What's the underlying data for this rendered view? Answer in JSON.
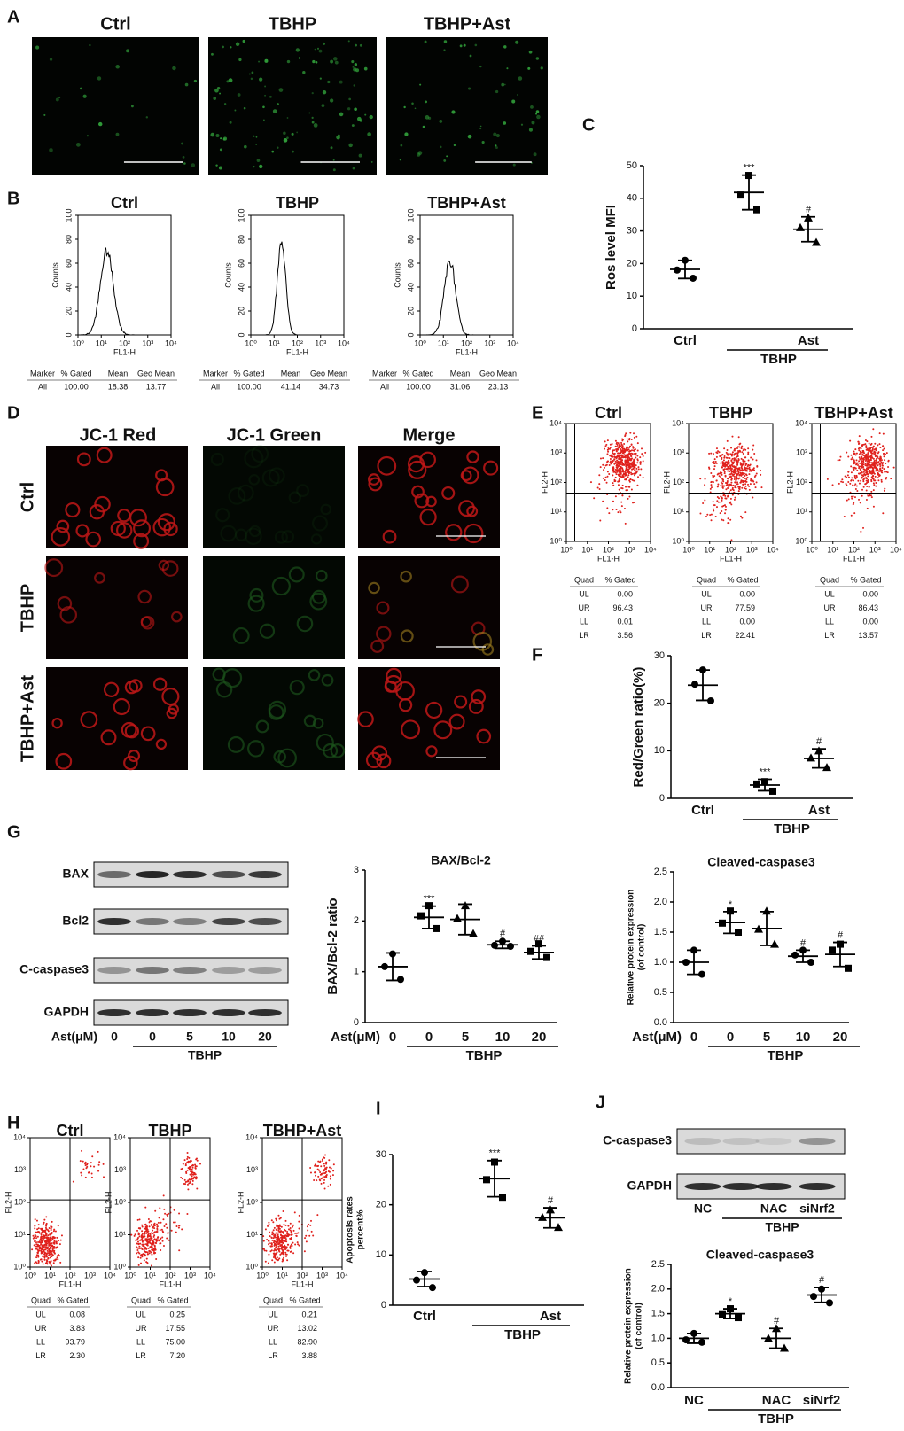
{
  "panel_letters": [
    "A",
    "B",
    "C",
    "D",
    "E",
    "F",
    "G",
    "H",
    "I",
    "J"
  ],
  "A": {
    "titles": [
      "Ctrl",
      "TBHP",
      "TBHP+Ast"
    ]
  },
  "B": {
    "titles": [
      "Ctrl",
      "TBHP",
      "TBHP+Ast"
    ],
    "ylabel": "Counts",
    "xlabel": "FL1-H",
    "ylim": [
      0,
      100
    ],
    "yticks": [
      0,
      20,
      40,
      60,
      80,
      100
    ],
    "xscale": "log",
    "xlim": [
      1,
      10000
    ],
    "xticks": [
      {
        "value": 1,
        "label": "10⁰"
      },
      {
        "value": 10,
        "label": "10¹"
      },
      {
        "value": 100,
        "label": "10²"
      },
      {
        "value": 1000,
        "label": "10³"
      },
      {
        "value": 10000,
        "label": "10⁴"
      }
    ],
    "table_header": [
      "Marker",
      "% Gated",
      "Mean",
      "Geo Mean"
    ],
    "table_rows": [
      [
        "All",
        "100.00",
        "18.38",
        "13.77"
      ],
      [
        "All",
        "100.00",
        "41.14",
        "34.73"
      ],
      [
        "All",
        "100.00",
        "31.06",
        "23.13"
      ]
    ]
  },
  "D": {
    "columns": [
      "JC-1 Red",
      "JC-1 Green",
      "Merge"
    ],
    "rows": [
      "Ctrl",
      "TBHP",
      "TBHP+Ast"
    ]
  },
  "E": {
    "titles": [
      "Ctrl",
      "TBHP",
      "TBHP+Ast"
    ],
    "ylabel": "FL2-H",
    "xlabel": "FL1-H",
    "scale": "log",
    "lim": [
      1,
      10000
    ],
    "ticks": [
      {
        "value": 1,
        "label": "10⁰"
      },
      {
        "value": 10,
        "label": "10¹"
      },
      {
        "value": 100,
        "label": "10²"
      },
      {
        "value": 1000,
        "label": "10³"
      },
      {
        "value": 10000,
        "label": "10⁴"
      }
    ],
    "table_header": [
      "Quad",
      "% Gated"
    ],
    "quads": [
      "UL",
      "UR",
      "LL",
      "LR"
    ],
    "tables": [
      [
        "0.00",
        "96.43",
        "0.01",
        "3.56"
      ],
      [
        "0.00",
        "77.59",
        "0.00",
        "22.41"
      ],
      [
        "0.00",
        "86.43",
        "0.00",
        "13.57"
      ]
    ]
  },
  "G_blot": {
    "proteins": [
      "BAX",
      "Bcl2",
      "C-caspase3",
      "GAPDH"
    ],
    "xlabel": "Ast(μM)",
    "lanes": [
      "0",
      "0",
      "5",
      "10",
      "20"
    ],
    "group_label": "TBHP"
  },
  "H": {
    "titles": [
      "Ctrl",
      "TBHP",
      "TBHP+Ast"
    ],
    "ylabel": "FL2-H",
    "xlabel": "FL1-H",
    "scale": "log",
    "lim": [
      1,
      10000
    ],
    "ticks": [
      {
        "value": 1,
        "label": "10⁰"
      },
      {
        "value": 10,
        "label": "10¹"
      },
      {
        "value": 100,
        "label": "10²"
      },
      {
        "value": 1000,
        "label": "10³"
      },
      {
        "value": 10000,
        "label": "10⁴"
      }
    ],
    "table_header": [
      "Quad",
      "% Gated"
    ],
    "quads": [
      "UL",
      "UR",
      "LL",
      "LR"
    ],
    "tables": [
      [
        "0.08",
        "3.83",
        "93.79",
        "2.30"
      ],
      [
        "0.25",
        "17.55",
        "75.00",
        "7.20"
      ],
      [
        "0.21",
        "13.02",
        "82.90",
        "3.88"
      ]
    ]
  },
  "J_blot": {
    "proteins": [
      "C-caspase3",
      "GAPDH"
    ],
    "lanes": [
      "NC",
      null,
      "NAC",
      "siNrf2"
    ],
    "group_label": "TBHP"
  },
  "chart_data": [
    {
      "type": "dotplot",
      "ylabel": [
        "Ros level MFI"
      ],
      "ylim": [
        0,
        50
      ],
      "yticks": [
        0,
        10,
        20,
        30,
        40,
        50
      ],
      "categories": [
        "Ctrl",
        null,
        "Ast"
      ],
      "group_label": "TBHP",
      "groups": [
        {
          "points": [
            21,
            18,
            15.5
          ],
          "mean": 18.2,
          "sd": 2.8
        },
        {
          "points": [
            47,
            41,
            36.5
          ],
          "mean": 41.8,
          "sd": 5.3
        },
        {
          "points": [
            34,
            31,
            26.5
          ],
          "mean": 30.5,
          "sd": 3.8
        }
      ],
      "annotations": [
        null,
        "***",
        "#"
      ]
    },
    {
      "type": "dotplot",
      "ylabel": [
        "Red/Green ratio(%)"
      ],
      "ylim": [
        0,
        30
      ],
      "yticks": [
        0,
        10,
        20,
        30
      ],
      "categories": [
        "Ctrl",
        null,
        "Ast"
      ],
      "group_label": "TBHP",
      "groups": [
        {
          "points": [
            27,
            24,
            20.5
          ],
          "mean": 23.8,
          "sd": 3.2
        },
        {
          "points": [
            3.5,
            3,
            1.5
          ],
          "mean": 2.8,
          "sd": 1.2
        },
        {
          "points": [
            10,
            8.5,
            6.5
          ],
          "mean": 8.4,
          "sd": 2
        }
      ],
      "annotations": [
        null,
        "***",
        "#"
      ]
    },
    {
      "type": "dotplot",
      "title": "BAX/Bcl-2",
      "ylabel": [
        "BAX/Bcl-2 ratio"
      ],
      "xlabel": "Ast(μM)",
      "ylim": [
        0,
        3
      ],
      "yticks": [
        0,
        1,
        2,
        3
      ],
      "categories": [
        "0",
        "0",
        "5",
        "10",
        "20"
      ],
      "group_label": "TBHP",
      "groups": [
        {
          "points": [
            1.35,
            1.1,
            0.85
          ],
          "mean": 1.1,
          "sd": 0.27
        },
        {
          "points": [
            2.3,
            2.1,
            1.85
          ],
          "mean": 2.07,
          "sd": 0.22
        },
        {
          "points": [
            2.3,
            2.05,
            1.75
          ],
          "mean": 2.03,
          "sd": 0.3
        },
        {
          "points": [
            1.6,
            1.52,
            1.5
          ],
          "mean": 1.53,
          "sd": 0.07
        },
        {
          "points": [
            1.55,
            1.4,
            1.28
          ],
          "mean": 1.38,
          "sd": 0.13
        }
      ],
      "annotations": [
        null,
        "***",
        null,
        "#",
        "##"
      ]
    },
    {
      "type": "dotplot",
      "title": "Cleaved-caspase3",
      "ylabel": [
        "Relative protein expression",
        "(of control)"
      ],
      "xlabel": "Ast(μM)",
      "ylim": [
        0,
        2.5
      ],
      "yticks": [
        {
          "value": 0,
          "label": "0.0"
        },
        {
          "value": 0.5,
          "label": "0.5"
        },
        {
          "value": 1,
          "label": "1.0"
        },
        {
          "value": 1.5,
          "label": "1.5"
        },
        {
          "value": 2,
          "label": "2.0"
        },
        {
          "value": 2.5,
          "label": "2.5"
        }
      ],
      "categories": [
        "0",
        "0",
        "5",
        "10",
        "20"
      ],
      "group_label": "TBHP",
      "groups": [
        {
          "points": [
            1.2,
            1.0,
            0.8
          ],
          "mean": 1.0,
          "sd": 0.2
        },
        {
          "points": [
            1.85,
            1.65,
            1.5
          ],
          "mean": 1.66,
          "sd": 0.18
        },
        {
          "points": [
            1.85,
            1.55,
            1.3
          ],
          "mean": 1.56,
          "sd": 0.28
        },
        {
          "points": [
            1.2,
            1.12,
            1.0
          ],
          "mean": 1.1,
          "sd": 0.1
        },
        {
          "points": [
            1.3,
            1.2,
            0.9
          ],
          "mean": 1.13,
          "sd": 0.2
        }
      ],
      "annotations": [
        null,
        "*",
        null,
        "#",
        "#"
      ]
    },
    {
      "type": "dotplot",
      "ylabel": [
        "Apoptosis rates",
        "percent%"
      ],
      "ylim": [
        0,
        30
      ],
      "yticks": [
        0,
        10,
        20,
        30
      ],
      "categories": [
        "Ctrl",
        null,
        "Ast"
      ],
      "group_label": "TBHP",
      "groups": [
        {
          "points": [
            6.5,
            5,
            3.5
          ],
          "mean": 5.2,
          "sd": 1.5
        },
        {
          "points": [
            28.5,
            25,
            21.5
          ],
          "mean": 25.2,
          "sd": 3.6
        },
        {
          "points": [
            19,
            17.5,
            15.5
          ],
          "mean": 17.4,
          "sd": 2
        }
      ],
      "annotations": [
        null,
        "***",
        "#"
      ]
    },
    {
      "type": "dotplot",
      "title": "Cleaved-caspase3",
      "ylabel": [
        "Relative protein expression",
        "(of control)"
      ],
      "ylim": [
        0,
        2.5
      ],
      "yticks": [
        {
          "value": 0,
          "label": "0.0"
        },
        {
          "value": 0.5,
          "label": "0.5"
        },
        {
          "value": 1,
          "label": "1.0"
        },
        {
          "value": 1.5,
          "label": "1.5"
        },
        {
          "value": 2,
          "label": "2.0"
        },
        {
          "value": 2.5,
          "label": "2.5"
        }
      ],
      "categories": [
        "NC",
        null,
        "NAC",
        "siNrf2"
      ],
      "group_label": "TBHP",
      "groups": [
        {
          "points": [
            1.1,
            0.97,
            0.92
          ],
          "mean": 1.0,
          "sd": 0.1
        },
        {
          "points": [
            1.6,
            1.48,
            1.42
          ],
          "mean": 1.5,
          "sd": 0.1
        },
        {
          "points": [
            1.2,
            1.0,
            0.8
          ],
          "mean": 1.0,
          "sd": 0.2
        },
        {
          "points": [
            2.0,
            1.85,
            1.72
          ],
          "mean": 1.88,
          "sd": 0.15
        }
      ],
      "annotations": [
        null,
        "*",
        "#",
        "#"
      ]
    }
  ]
}
